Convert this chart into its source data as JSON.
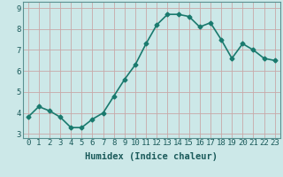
{
  "x": [
    0,
    1,
    2,
    3,
    4,
    5,
    6,
    7,
    8,
    9,
    10,
    11,
    12,
    13,
    14,
    15,
    16,
    17,
    18,
    19,
    20,
    21,
    22,
    23
  ],
  "y": [
    3.8,
    4.3,
    4.1,
    3.8,
    3.3,
    3.3,
    3.7,
    4.0,
    4.8,
    5.6,
    6.3,
    7.3,
    8.2,
    8.7,
    8.7,
    8.6,
    8.1,
    8.3,
    7.5,
    6.6,
    7.3,
    7.0,
    6.6,
    6.5
  ],
  "line_color": "#1a7a6e",
  "marker": "D",
  "marker_size": 2.5,
  "bg_color": "#cce8e8",
  "grid_color": "#c8a8a8",
  "xlabel": "Humidex (Indice chaleur)",
  "xlim": [
    -0.5,
    23.5
  ],
  "ylim": [
    2.8,
    9.3
  ],
  "yticks": [
    3,
    4,
    5,
    6,
    7,
    8,
    9
  ],
  "xtick_labels": [
    "0",
    "1",
    "2",
    "3",
    "4",
    "5",
    "6",
    "7",
    "8",
    "9",
    "10",
    "11",
    "12",
    "13",
    "14",
    "15",
    "16",
    "17",
    "18",
    "19",
    "20",
    "21",
    "22",
    "23"
  ],
  "title_color": "#1a5a5a",
  "xlabel_fontsize": 7.5,
  "tick_fontsize": 6.5,
  "line_width": 1.2
}
